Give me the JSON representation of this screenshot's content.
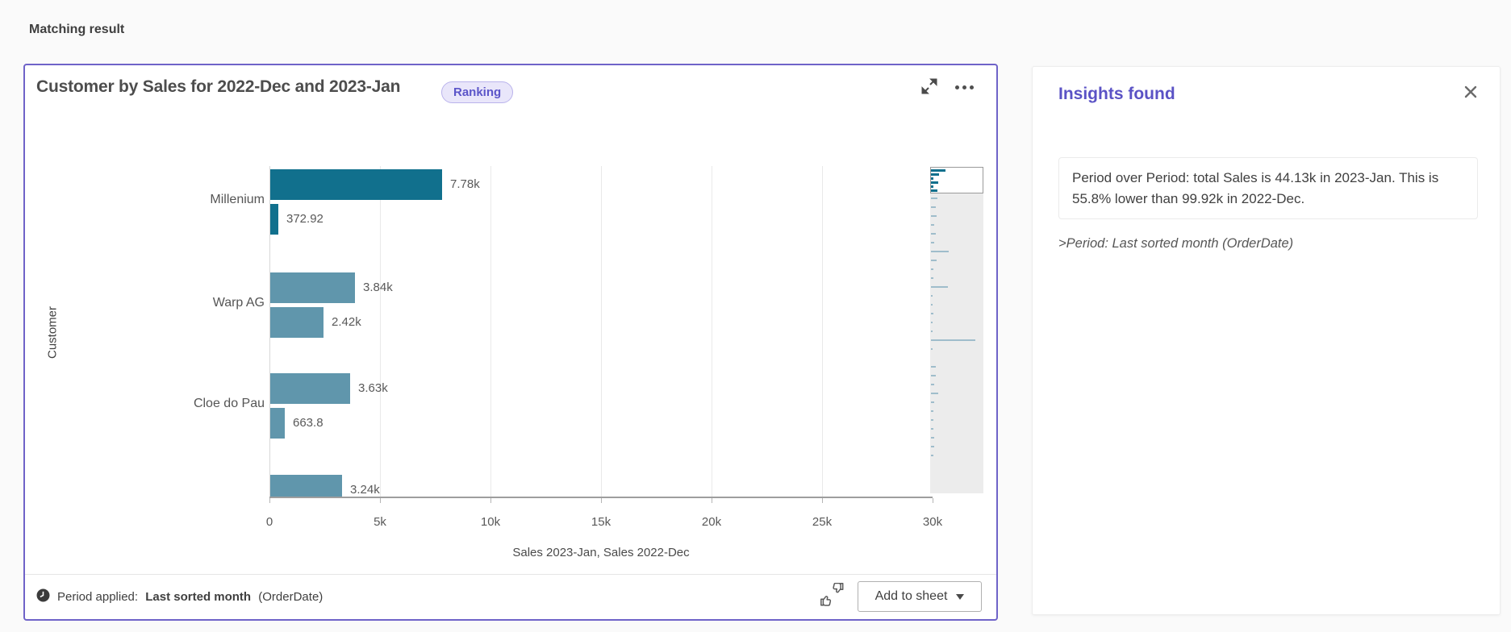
{
  "page": {
    "title": "Matching result"
  },
  "chart_card": {
    "badge": "Ranking",
    "footer": {
      "period_label": "Period applied:",
      "period_value": "Last sorted month",
      "period_suffix": "(OrderDate)",
      "add_button": "Add to sheet"
    }
  },
  "insights_panel": {
    "title": "Insights found",
    "insight_text": "Period over Period: total Sales is 44.13k in 2023-Jan. This is 55.8% lower than 99.92k in 2022-Dec.",
    "period_note": ">Period: Last sorted month (OrderDate)"
  },
  "chart_data": {
    "type": "bar",
    "orientation": "horizontal",
    "title": "Customer by Sales for 2022-Dec and 2023-Jan",
    "xlabel": "Sales 2023-Jan, Sales 2022-Dec",
    "ylabel": "Customer",
    "xlim": [
      0,
      30000
    ],
    "grid": true,
    "xtick_labels": [
      "0",
      "5k",
      "10k",
      "15k",
      "20k",
      "25k",
      "30k"
    ],
    "xtick_values": [
      0,
      5000,
      10000,
      15000,
      20000,
      25000,
      30000
    ],
    "categories": [
      "Millenium",
      "Warp AG",
      "Cloe do Pau",
      ""
    ],
    "series": [
      {
        "name": "Sales 2023-Jan",
        "values": [
          7780,
          3840,
          3630,
          3240
        ],
        "labels": [
          "7.78k",
          "3.84k",
          "3.63k",
          "3.24k"
        ]
      },
      {
        "name": "Sales 2022-Dec",
        "values": [
          372.92,
          2420,
          663.8,
          null
        ],
        "labels": [
          "372.92",
          "2.42k",
          "663.8",
          null
        ]
      }
    ],
    "highlight_index": 0,
    "minimap": {
      "viewport_bars": [
        18,
        10,
        3,
        9,
        3,
        8
      ],
      "bars": [
        8,
        6,
        7,
        4,
        6,
        4,
        22,
        7,
        3,
        3,
        21,
        2,
        2,
        3,
        2,
        2,
        55,
        2,
        0,
        6,
        6,
        4,
        9,
        4,
        3,
        3,
        3,
        4,
        4,
        3
      ]
    }
  },
  "colors": {
    "accent_purple": "#6f63c8",
    "badge_bg": "#e9e6fa",
    "badge_border": "#bab3ec",
    "badge_text": "#5b55c9",
    "insights_title": "#5a52c5",
    "bar_highlight": "#11708d",
    "bar_default": "#6096ac",
    "minimap_bar": "#9fbdcb",
    "grid": "#e9e9e9",
    "axis_line": "#9e9e9e",
    "text_dark": "#404040",
    "text_mid": "#595959"
  }
}
